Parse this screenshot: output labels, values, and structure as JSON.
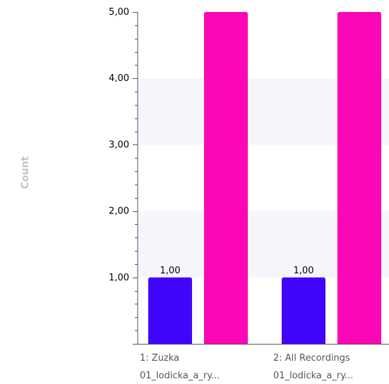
{
  "chart_data": {
    "type": "bar",
    "ylabel": "Count",
    "ylim": [
      0,
      5
    ],
    "grid": "alternating horizontal bands",
    "legend": "none",
    "y_tick_labels": [
      "1,00",
      "2,00",
      "3,00",
      "4,00",
      "5,00"
    ],
    "categories": [
      {
        "line1": "1: Zuzka",
        "line2": "01_lodicka_a_ry..."
      },
      {
        "line1": "2: All Recordings",
        "line2": "01_lodicka_a_ry..."
      }
    ],
    "series": [
      {
        "color": "#3f06fb",
        "values": [
          1,
          1
        ],
        "data_labels": [
          "1,00",
          "1,00"
        ]
      },
      {
        "color": "#fb07b5",
        "values": [
          5,
          5
        ],
        "data_labels": [
          "",
          ""
        ]
      }
    ],
    "colors": {
      "band": "#f4f6fc",
      "axis": "#555555",
      "axis_title": "#c4c4c4",
      "category_text": "#555555"
    }
  }
}
